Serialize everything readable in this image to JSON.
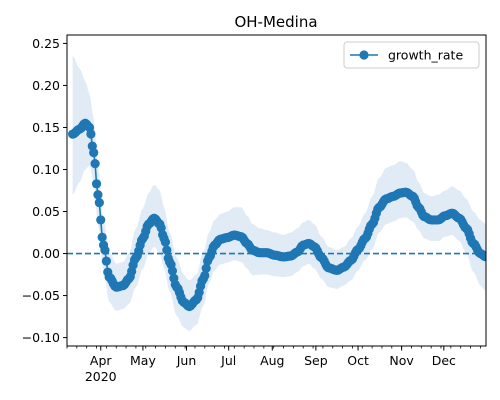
{
  "chart_data": {
    "type": "line",
    "title": "OH-Medina",
    "xlabel": "",
    "ylabel": "",
    "x_start": "2020-03-12",
    "x_end": "2020-12-31",
    "xlim": [
      "2020-03-08",
      "2020-12-31"
    ],
    "ylim": [
      -0.11,
      0.26
    ],
    "y_ticks": [
      -0.1,
      -0.05,
      0.0,
      0.05,
      0.1,
      0.15,
      0.2,
      0.25
    ],
    "y_tick_labels": [
      "−0.10",
      "−0.05",
      "0.00",
      "0.05",
      "0.10",
      "0.15",
      "0.20",
      "0.25"
    ],
    "x_ticks": [
      {
        "date": "2020-04-01",
        "label": "Apr",
        "sublabel": "2020"
      },
      {
        "date": "2020-05-01",
        "label": "May"
      },
      {
        "date": "2020-06-01",
        "label": "Jun"
      },
      {
        "date": "2020-07-01",
        "label": "Jul"
      },
      {
        "date": "2020-08-01",
        "label": "Aug"
      },
      {
        "date": "2020-09-01",
        "label": "Sep"
      },
      {
        "date": "2020-10-01",
        "label": "Oct"
      },
      {
        "date": "2020-11-01",
        "label": "Nov"
      },
      {
        "date": "2020-12-01",
        "label": "Dec"
      }
    ],
    "grid": false,
    "legend": {
      "position": "top-right",
      "entries": [
        "growth_rate"
      ]
    },
    "reference_line": {
      "y": 0,
      "style": "dashed"
    },
    "colors": {
      "series": "#1f77b4",
      "band": "#dbe8f5",
      "axis": "#000000"
    },
    "series": [
      {
        "name": "growth_rate",
        "marker": "circle",
        "keypoints": [
          {
            "x": "2020-03-12",
            "y": 0.142,
            "lo": 0.07,
            "hi": 0.235
          },
          {
            "x": "2020-03-17",
            "y": 0.148,
            "lo": 0.085,
            "hi": 0.22
          },
          {
            "x": "2020-03-21",
            "y": 0.155,
            "lo": 0.1,
            "hi": 0.205
          },
          {
            "x": "2020-03-24",
            "y": 0.15,
            "lo": 0.105,
            "hi": 0.19
          },
          {
            "x": "2020-03-27",
            "y": 0.12,
            "lo": 0.085,
            "hi": 0.16
          },
          {
            "x": "2020-03-30",
            "y": 0.07,
            "lo": 0.035,
            "hi": 0.105
          },
          {
            "x": "2020-04-03",
            "y": 0.01,
            "lo": -0.02,
            "hi": 0.04
          },
          {
            "x": "2020-04-07",
            "y": -0.028,
            "lo": -0.058,
            "hi": 0.002
          },
          {
            "x": "2020-04-12",
            "y": -0.04,
            "lo": -0.068,
            "hi": -0.012
          },
          {
            "x": "2020-04-17",
            "y": -0.038,
            "lo": -0.066,
            "hi": -0.01
          },
          {
            "x": "2020-04-21",
            "y": -0.03,
            "lo": -0.06,
            "hi": 0.0
          },
          {
            "x": "2020-04-26",
            "y": -0.005,
            "lo": -0.04,
            "hi": 0.03
          },
          {
            "x": "2020-05-01",
            "y": 0.018,
            "lo": -0.018,
            "hi": 0.054
          },
          {
            "x": "2020-05-05",
            "y": 0.035,
            "lo": 0.0,
            "hi": 0.072
          },
          {
            "x": "2020-05-09",
            "y": 0.042,
            "lo": 0.008,
            "hi": 0.082
          },
          {
            "x": "2020-05-13",
            "y": 0.035,
            "lo": 0.0,
            "hi": 0.075
          },
          {
            "x": "2020-05-16",
            "y": 0.018,
            "lo": -0.018,
            "hi": 0.055
          },
          {
            "x": "2020-05-20",
            "y": -0.01,
            "lo": -0.045,
            "hi": 0.025
          },
          {
            "x": "2020-05-25",
            "y": -0.04,
            "lo": -0.074,
            "hi": -0.005
          },
          {
            "x": "2020-05-30",
            "y": -0.058,
            "lo": -0.088,
            "hi": -0.025
          },
          {
            "x": "2020-06-03",
            "y": -0.063,
            "lo": -0.092,
            "hi": -0.032
          },
          {
            "x": "2020-06-08",
            "y": -0.055,
            "lo": -0.085,
            "hi": -0.025
          },
          {
            "x": "2020-06-13",
            "y": -0.03,
            "lo": -0.062,
            "hi": 0.002
          },
          {
            "x": "2020-06-17",
            "y": -0.005,
            "lo": -0.035,
            "hi": 0.025
          },
          {
            "x": "2020-06-21",
            "y": 0.01,
            "lo": -0.02,
            "hi": 0.04
          },
          {
            "x": "2020-06-25",
            "y": 0.017,
            "lo": -0.013,
            "hi": 0.047
          },
          {
            "x": "2020-06-30",
            "y": 0.019,
            "lo": -0.011,
            "hi": 0.05
          },
          {
            "x": "2020-07-05",
            "y": 0.022,
            "lo": -0.008,
            "hi": 0.055
          },
          {
            "x": "2020-07-10",
            "y": 0.02,
            "lo": -0.01,
            "hi": 0.055
          },
          {
            "x": "2020-07-14",
            "y": 0.012,
            "lo": -0.018,
            "hi": 0.045
          },
          {
            "x": "2020-07-18",
            "y": 0.004,
            "lo": -0.026,
            "hi": 0.035
          },
          {
            "x": "2020-07-23",
            "y": 0.001,
            "lo": -0.025,
            "hi": 0.03
          },
          {
            "x": "2020-07-28",
            "y": 0.001,
            "lo": -0.025,
            "hi": 0.028
          },
          {
            "x": "2020-08-03",
            "y": -0.002,
            "lo": -0.027,
            "hi": 0.025
          },
          {
            "x": "2020-08-09",
            "y": -0.004,
            "lo": -0.028,
            "hi": 0.022
          },
          {
            "x": "2020-08-14",
            "y": -0.003,
            "lo": -0.027,
            "hi": 0.025
          },
          {
            "x": "2020-08-19",
            "y": 0.002,
            "lo": -0.022,
            "hi": 0.03
          },
          {
            "x": "2020-08-23",
            "y": 0.01,
            "lo": -0.015,
            "hi": 0.037
          },
          {
            "x": "2020-08-27",
            "y": 0.012,
            "lo": -0.012,
            "hi": 0.04
          },
          {
            "x": "2020-08-31",
            "y": 0.008,
            "lo": -0.018,
            "hi": 0.035
          },
          {
            "x": "2020-09-05",
            "y": -0.005,
            "lo": -0.03,
            "hi": 0.02
          },
          {
            "x": "2020-09-10",
            "y": -0.017,
            "lo": -0.04,
            "hi": 0.008
          },
          {
            "x": "2020-09-16",
            "y": -0.02,
            "lo": -0.042,
            "hi": 0.004
          },
          {
            "x": "2020-09-21",
            "y": -0.016,
            "lo": -0.038,
            "hi": 0.008
          },
          {
            "x": "2020-09-26",
            "y": -0.008,
            "lo": -0.032,
            "hi": 0.018
          },
          {
            "x": "2020-10-01",
            "y": 0.005,
            "lo": -0.02,
            "hi": 0.032
          },
          {
            "x": "2020-10-06",
            "y": 0.018,
            "lo": -0.008,
            "hi": 0.048
          },
          {
            "x": "2020-10-11",
            "y": 0.035,
            "lo": 0.005,
            "hi": 0.068
          },
          {
            "x": "2020-10-16",
            "y": 0.055,
            "lo": 0.025,
            "hi": 0.09
          },
          {
            "x": "2020-10-21",
            "y": 0.065,
            "lo": 0.035,
            "hi": 0.102
          },
          {
            "x": "2020-10-26",
            "y": 0.068,
            "lo": 0.038,
            "hi": 0.105
          },
          {
            "x": "2020-10-31",
            "y": 0.072,
            "lo": 0.042,
            "hi": 0.11
          },
          {
            "x": "2020-11-04",
            "y": 0.073,
            "lo": 0.043,
            "hi": 0.108
          },
          {
            "x": "2020-11-09",
            "y": 0.068,
            "lo": 0.038,
            "hi": 0.1
          },
          {
            "x": "2020-11-13",
            "y": 0.055,
            "lo": 0.028,
            "hi": 0.085
          },
          {
            "x": "2020-11-17",
            "y": 0.044,
            "lo": 0.018,
            "hi": 0.072
          },
          {
            "x": "2020-11-22",
            "y": 0.04,
            "lo": 0.015,
            "hi": 0.068
          },
          {
            "x": "2020-11-27",
            "y": 0.04,
            "lo": 0.015,
            "hi": 0.07
          },
          {
            "x": "2020-12-02",
            "y": 0.045,
            "lo": 0.02,
            "hi": 0.075
          },
          {
            "x": "2020-12-07",
            "y": 0.048,
            "lo": 0.022,
            "hi": 0.08
          },
          {
            "x": "2020-12-12",
            "y": 0.042,
            "lo": 0.015,
            "hi": 0.075
          },
          {
            "x": "2020-12-17",
            "y": 0.03,
            "lo": 0.0,
            "hi": 0.065
          },
          {
            "x": "2020-12-22",
            "y": 0.012,
            "lo": -0.022,
            "hi": 0.05
          },
          {
            "x": "2020-12-27",
            "y": 0.0,
            "lo": -0.038,
            "hi": 0.04
          },
          {
            "x": "2020-12-31",
            "y": -0.004,
            "lo": -0.045,
            "hi": 0.035
          }
        ]
      }
    ]
  }
}
